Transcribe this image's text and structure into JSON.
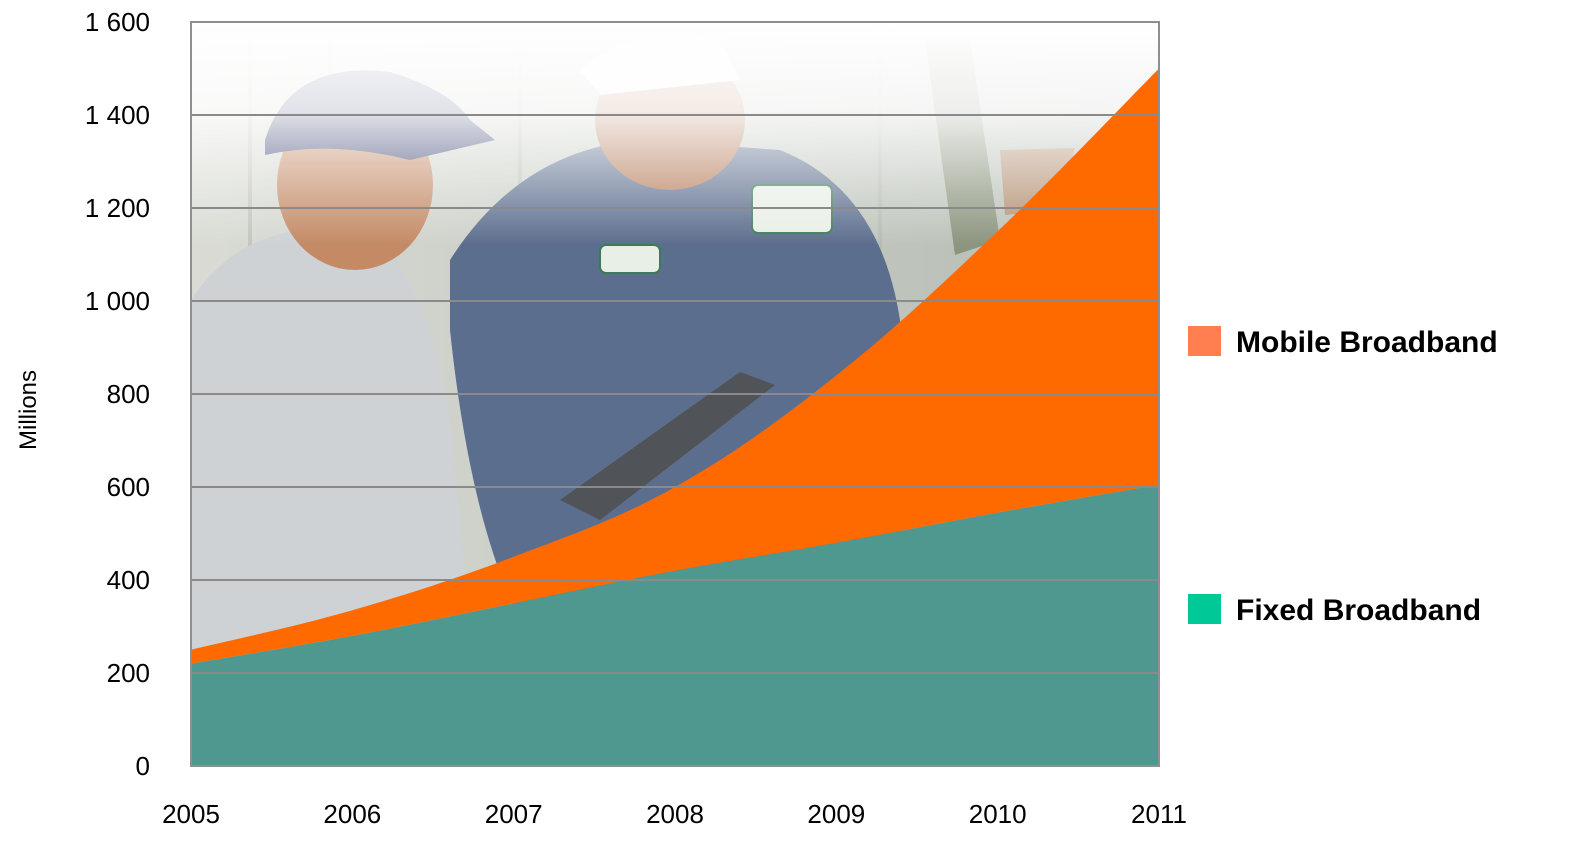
{
  "chart_data": {
    "type": "area",
    "stacked": true,
    "x": [
      2005,
      2006,
      2007,
      2008,
      2009,
      2010,
      2011
    ],
    "ylabel": "Millions",
    "ylim": [
      0,
      1600
    ],
    "xlim": [
      2005,
      2011
    ],
    "y_ticks": [
      "0",
      "200",
      "400",
      "600",
      "800",
      "1 000",
      "1 200",
      "1 400",
      "1 600"
    ],
    "x_ticks": [
      "2005",
      "2006",
      "2007",
      "2008",
      "2009",
      "2010",
      "2011"
    ],
    "grid": true,
    "legend_position": "right",
    "series": [
      {
        "name": "Fixed Broadband",
        "color": "#4e9890",
        "legend_color": "#00c896",
        "values": [
          220,
          280,
          350,
          420,
          480,
          545,
          605
        ]
      },
      {
        "name": "Mobile Broadband",
        "color": "#ff6a00",
        "legend_color": "#ff7f50",
        "values": [
          30,
          55,
          100,
          180,
          360,
          605,
          895
        ]
      }
    ],
    "background": "photograph of two workers looking at a handheld device"
  }
}
